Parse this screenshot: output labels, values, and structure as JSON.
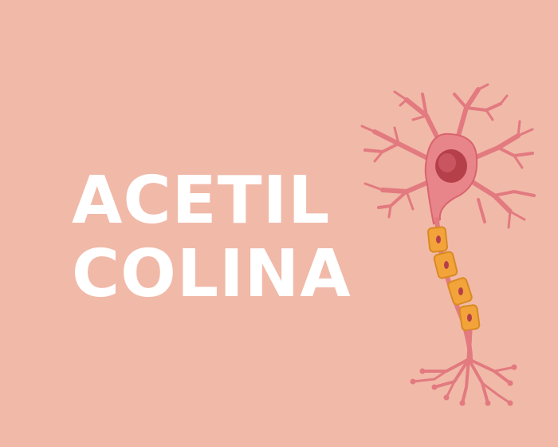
{
  "title": {
    "line1": "ACETIL",
    "line2": "COLINA"
  },
  "illustration": {
    "icon": "neuron-icon"
  },
  "colors": {
    "background": "#f1b9a8",
    "title": "#ffffff",
    "neuron_body": "#e8858a",
    "neuron_stroke": "#d9646e",
    "nucleus": "#b5404a",
    "myelin": "#f2a33a",
    "myelin_stroke": "#d98a22"
  }
}
